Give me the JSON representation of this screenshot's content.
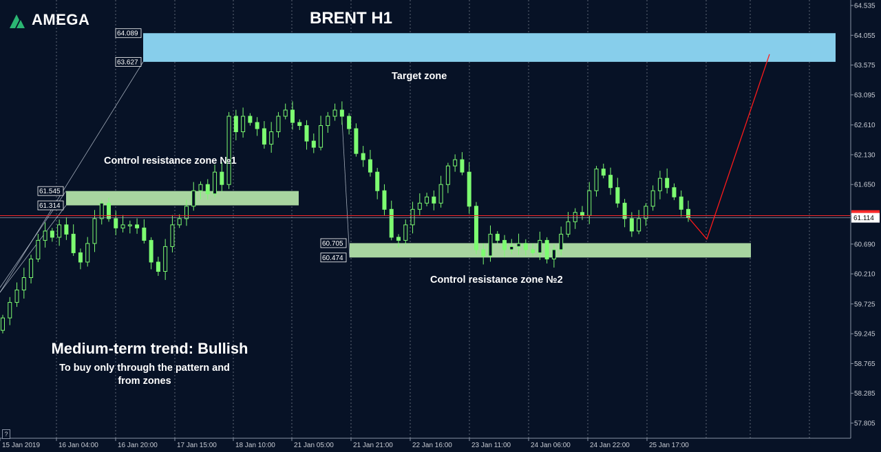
{
  "brand": {
    "name": "AMEGA",
    "logo_color": "#2bb673"
  },
  "chart_title": "BRENT H1",
  "annotations": {
    "target_zone": "Target zone",
    "zone1": "Control resistance zone №1",
    "zone2": "Control resistance zone №2",
    "trend_title": "Medium-term trend: Bullish",
    "trend_line1": "To buy only through the pattern  and",
    "trend_line2": "from zones"
  },
  "help_button": "?",
  "colors": {
    "background": "#071226",
    "target_zone": "#87ceeb",
    "control_zone": "#a8d5a0",
    "candle": "#7dfc71",
    "projection": "#ff1a1a",
    "price_line": "#ff2a2a",
    "grid": "#d0d6e0"
  },
  "chart_data": {
    "type": "candlestick",
    "title": "BRENT H1",
    "x_tick_labels": [
      "15 Jan 2019",
      "16 Jan 04:00",
      "16 Jan 20:00",
      "17 Jan 15:00",
      "18 Jan 10:00",
      "21 Jan 05:00",
      "21 Jan 21:00",
      "22 Jan 16:00",
      "23 Jan 11:00",
      "24 Jan 06:00",
      "24 Jan 22:00",
      "25 Jan 17:00"
    ],
    "y_tick_labels": [
      "64.535",
      "64.055",
      "63.575",
      "63.095",
      "62.610",
      "62.130",
      "61.650",
      "61.170",
      "60.690",
      "60.210",
      "59.725",
      "59.245",
      "58.765",
      "58.285",
      "57.805"
    ],
    "ylim": [
      57.8,
      64.6
    ],
    "current_price": "61.114",
    "zones": [
      {
        "name": "Target zone",
        "top": "64.089",
        "bottom": "63.627"
      },
      {
        "name": "Control resistance zone №1",
        "top": "61.545",
        "bottom": "61.314"
      },
      {
        "name": "Control resistance zone №2",
        "top": "60.705",
        "bottom": "60.474"
      }
    ],
    "closes": [
      59.5,
      59.75,
      59.95,
      60.15,
      60.45,
      60.75,
      60.9,
      60.8,
      61.0,
      60.85,
      60.55,
      60.4,
      60.7,
      61.1,
      61.35,
      61.1,
      60.95,
      61.0,
      61.0,
      60.95,
      60.75,
      60.4,
      60.25,
      60.65,
      61.0,
      61.1,
      61.3,
      61.55,
      61.65,
      61.5,
      61.85,
      61.65,
      62.75,
      62.5,
      62.75,
      62.65,
      62.55,
      62.3,
      62.5,
      62.75,
      62.85,
      62.65,
      62.6,
      62.35,
      62.25,
      62.6,
      62.75,
      62.85,
      62.75,
      62.55,
      62.15,
      62.05,
      61.85,
      61.55,
      61.25,
      60.8,
      60.75,
      61.0,
      61.25,
      61.35,
      61.45,
      61.35,
      61.65,
      61.95,
      62.05,
      61.85,
      61.3,
      60.6,
      60.5,
      60.85,
      60.75,
      60.6,
      60.65,
      60.7,
      60.6,
      60.55,
      60.75,
      60.45,
      60.6,
      60.85,
      61.05,
      61.2,
      61.15,
      61.55,
      61.9,
      61.8,
      61.6,
      61.35,
      61.1,
      60.9,
      61.1,
      61.3,
      61.55,
      61.75,
      61.6,
      61.45,
      61.25,
      61.12
    ],
    "projection": [
      {
        "x": "25 Jan 17:00",
        "y": 61.12
      },
      {
        "y": 60.77
      },
      {
        "y": 63.75
      }
    ]
  }
}
